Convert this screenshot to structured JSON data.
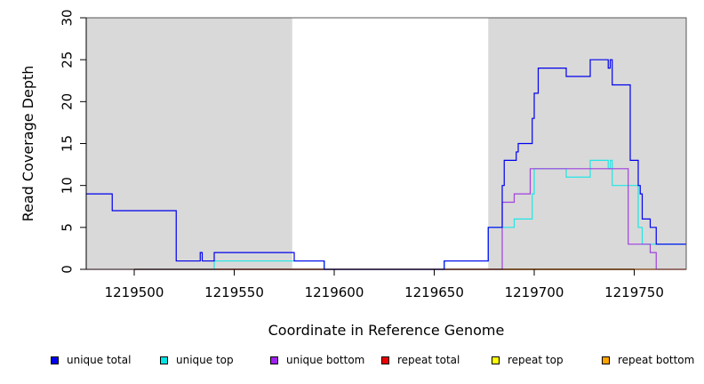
{
  "chart_data": {
    "type": "line",
    "title": "",
    "xlabel": "Coordinate in Reference Genome",
    "ylabel": "Read Coverage Depth",
    "xlim": [
      1219476,
      1219776
    ],
    "ylim": [
      0,
      30
    ],
    "xticks": [
      1219500,
      1219550,
      1219600,
      1219650,
      1219700,
      1219750
    ],
    "xtick_labels": [
      "1219500",
      "1219550",
      "1219600",
      "1219650",
      "1219700",
      "1219750"
    ],
    "yticks": [
      0,
      5,
      10,
      15,
      20,
      25,
      30
    ],
    "ytick_labels": [
      "0",
      "5",
      "10",
      "15",
      "20",
      "25",
      "30"
    ],
    "shaded_regions": [
      [
        1219476,
        1219579
      ],
      [
        1219677,
        1219776
      ]
    ],
    "shade_color": "#d9d9d9",
    "grid": false,
    "legend_position": "bottom",
    "series": [
      {
        "name": "unique total",
        "color": "#0000ee",
        "step": true,
        "x": [
          1219476,
          1219489,
          1219521,
          1219533,
          1219534,
          1219540,
          1219580,
          1219595,
          1219655,
          1219677,
          1219684,
          1219685,
          1219691,
          1219692,
          1219699,
          1219700,
          1219702,
          1219716,
          1219728,
          1219737,
          1219738,
          1219739,
          1219741,
          1219748,
          1219752,
          1219753,
          1219754,
          1219758,
          1219761,
          1219776
        ],
        "y": [
          9,
          7,
          1,
          2,
          1,
          2,
          1,
          0,
          1,
          5,
          10,
          13,
          14,
          15,
          18,
          21,
          24,
          23,
          25,
          24,
          25,
          22,
          22,
          13,
          10,
          9,
          6,
          5,
          3,
          3
        ]
      },
      {
        "name": "unique top",
        "color": "#22e5e5",
        "step": true,
        "x": [
          1219476,
          1219540,
          1219580,
          1219595,
          1219655,
          1219677,
          1219690,
          1219693,
          1219699,
          1219700,
          1219702,
          1219716,
          1219728,
          1219737,
          1219738,
          1219739,
          1219741,
          1219752,
          1219753,
          1219754,
          1219776
        ],
        "y": [
          0,
          1,
          1,
          0,
          1,
          5,
          6,
          6,
          9,
          12,
          12,
          11,
          13,
          12,
          13,
          10,
          10,
          5,
          5,
          3,
          3
        ]
      },
      {
        "name": "unique bottom",
        "color": "#a040e0",
        "step": true,
        "x": [
          1219476,
          1219684,
          1219690,
          1219698,
          1219740,
          1219747,
          1219758,
          1219761,
          1219776
        ],
        "y": [
          0,
          8,
          9,
          12,
          12,
          3,
          2,
          0,
          0
        ]
      },
      {
        "name": "repeat total",
        "color": "#ee0000",
        "step": true,
        "x": [
          1219476,
          1219776
        ],
        "y": [
          0,
          0
        ]
      },
      {
        "name": "repeat top",
        "color": "#eeee00",
        "step": true,
        "x": [
          1219476,
          1219776
        ],
        "y": [
          0,
          0
        ]
      },
      {
        "name": "repeat bottom",
        "color": "#ffa500",
        "step": true,
        "x": [
          1219476,
          1219776
        ],
        "y": [
          0,
          0
        ]
      }
    ]
  },
  "legend": [
    {
      "label": "unique total",
      "color": "#0000ee"
    },
    {
      "label": "unique top",
      "color": "#00e5e5"
    },
    {
      "label": "unique bottom",
      "color": "#a020f0"
    },
    {
      "label": "repeat total",
      "color": "#ee0000"
    },
    {
      "label": "repeat top",
      "color": "#ffff00"
    },
    {
      "label": "repeat bottom",
      "color": "#ffa500"
    }
  ]
}
